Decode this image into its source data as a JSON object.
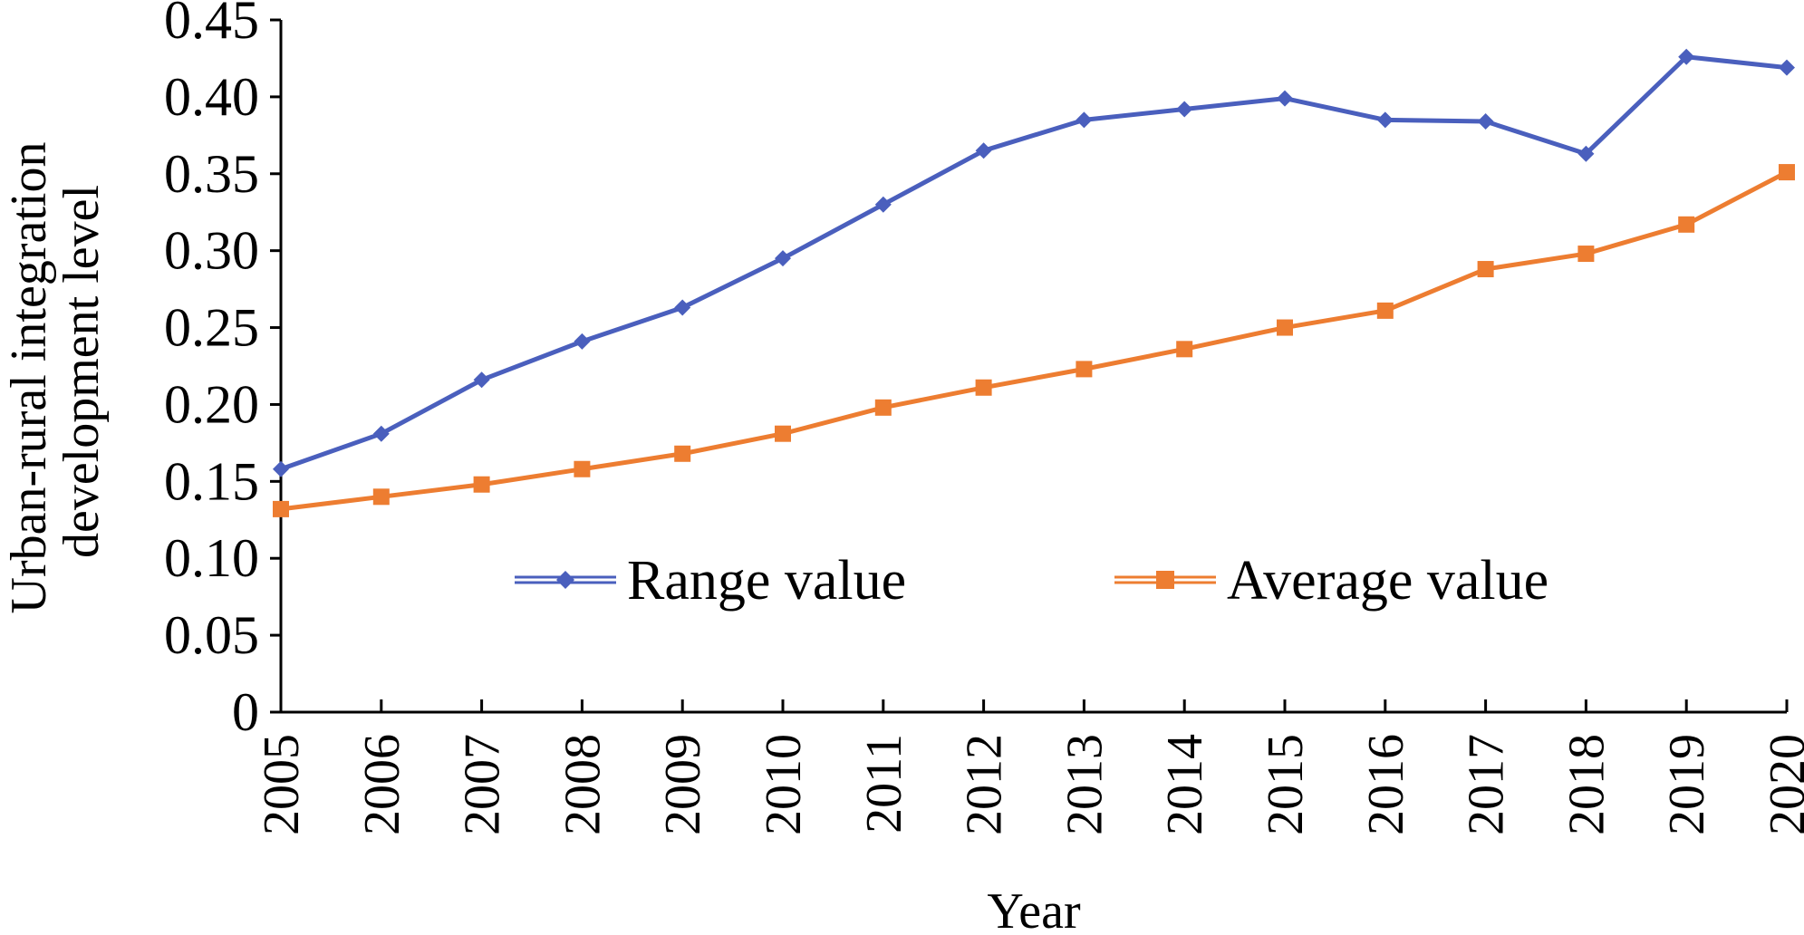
{
  "chart_data": {
    "type": "line",
    "title": "",
    "xlabel": "Year",
    "ylabel_lines": [
      "Urban-rural integration",
      "development level"
    ],
    "categories": [
      "2005",
      "2006",
      "2007",
      "2008",
      "2009",
      "2010",
      "2011",
      "2012",
      "2013",
      "2014",
      "2015",
      "2016",
      "2017",
      "2018",
      "2019",
      "2020"
    ],
    "ylim": [
      0,
      0.45
    ],
    "yticks": [
      "0",
      "0.05",
      "0.10",
      "0.15",
      "0.20",
      "0.25",
      "0.30",
      "0.35",
      "0.40",
      "0.45"
    ],
    "grid": false,
    "legend_position": "center",
    "series": [
      {
        "name": "Range value",
        "color": "#4a5fbd",
        "marker": "diamond",
        "values": [
          0.158,
          0.181,
          0.216,
          0.241,
          0.263,
          0.295,
          0.33,
          0.365,
          0.385,
          0.392,
          0.399,
          0.385,
          0.384,
          0.363,
          0.426,
          0.419
        ]
      },
      {
        "name": "Average value",
        "color": "#ed7d31",
        "marker": "square",
        "values": [
          0.132,
          0.14,
          0.148,
          0.158,
          0.168,
          0.181,
          0.198,
          0.211,
          0.223,
          0.236,
          0.25,
          0.261,
          0.288,
          0.298,
          0.317,
          0.351
        ]
      }
    ]
  }
}
